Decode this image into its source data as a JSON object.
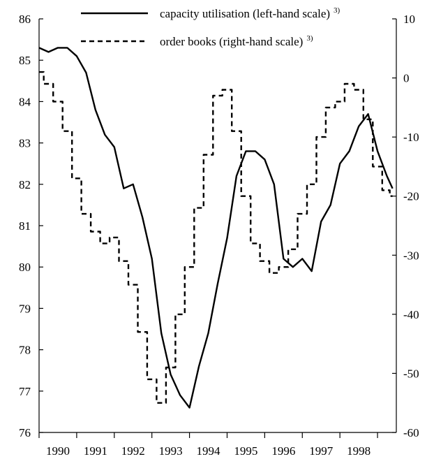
{
  "chart_data": {
    "type": "line",
    "left_axis": {
      "ylim": [
        76,
        86
      ],
      "ticks": [
        "76",
        "77",
        "78",
        "79",
        "80",
        "81",
        "82",
        "83",
        "84",
        "85",
        "86"
      ]
    },
    "right_axis": {
      "ylim": [
        -60,
        10
      ],
      "ticks": [
        "-60",
        "-50",
        "-40",
        "-30",
        "-20",
        "-10",
        "0",
        "10"
      ]
    },
    "x_axis": {
      "xlim": [
        1989.5,
        1999.0
      ],
      "tick_labels": [
        "1990",
        "1991",
        "1992",
        "1993",
        "1994",
        "1995",
        "1996",
        "1997",
        "1998"
      ]
    },
    "series": [
      {
        "name": "capacity utilisation (left-hand scale)",
        "superscript": "3)",
        "axis": "left",
        "style": "solid",
        "x": [
          1989.5,
          1989.75,
          1990.0,
          1990.25,
          1990.5,
          1990.75,
          1991.0,
          1991.25,
          1991.5,
          1991.75,
          1992.0,
          1992.25,
          1992.5,
          1992.75,
          1993.0,
          1993.25,
          1993.5,
          1993.75,
          1994.0,
          1994.25,
          1994.5,
          1994.75,
          1995.0,
          1995.25,
          1995.5,
          1995.75,
          1996.0,
          1996.25,
          1996.5,
          1996.75,
          1997.0,
          1997.25,
          1997.5,
          1997.75,
          1998.0,
          1998.25,
          1998.5,
          1998.75,
          1998.9
        ],
        "values": [
          85.3,
          85.2,
          85.3,
          85.3,
          85.1,
          84.7,
          83.8,
          83.2,
          82.9,
          81.9,
          82.0,
          81.2,
          80.2,
          78.4,
          77.4,
          76.9,
          76.6,
          77.6,
          78.4,
          79.6,
          80.7,
          82.2,
          82.8,
          82.8,
          82.6,
          82.0,
          80.2,
          80.0,
          80.2,
          79.9,
          81.1,
          81.5,
          82.5,
          82.8,
          83.4,
          83.7,
          82.8,
          82.2,
          81.9
        ]
      },
      {
        "name": "order books (right-hand scale)",
        "superscript": "3)",
        "axis": "right",
        "style": "dashed",
        "x": [
          1989.5,
          1989.75,
          1990.0,
          1990.25,
          1990.5,
          1990.75,
          1991.0,
          1991.25,
          1991.5,
          1991.75,
          1992.0,
          1992.25,
          1992.5,
          1992.75,
          1993.0,
          1993.25,
          1993.5,
          1993.75,
          1994.0,
          1994.25,
          1994.5,
          1994.75,
          1995.0,
          1995.25,
          1995.5,
          1995.75,
          1996.0,
          1996.25,
          1996.5,
          1996.75,
          1997.0,
          1997.25,
          1997.5,
          1997.75,
          1998.0,
          1998.25,
          1998.5,
          1998.75,
          1998.9
        ],
        "values": [
          1,
          -1,
          -4,
          -9,
          -17,
          -23,
          -26,
          -28,
          -27,
          -31,
          -35,
          -43,
          -51,
          -55,
          -49,
          -40,
          -32,
          -22,
          -13,
          -3,
          -2,
          -9,
          -20,
          -28,
          -31,
          -33,
          -32,
          -29,
          -23,
          -18,
          -10,
          -5,
          -4,
          -1,
          -2,
          -7,
          -15,
          -19,
          -20
        ]
      }
    ]
  }
}
